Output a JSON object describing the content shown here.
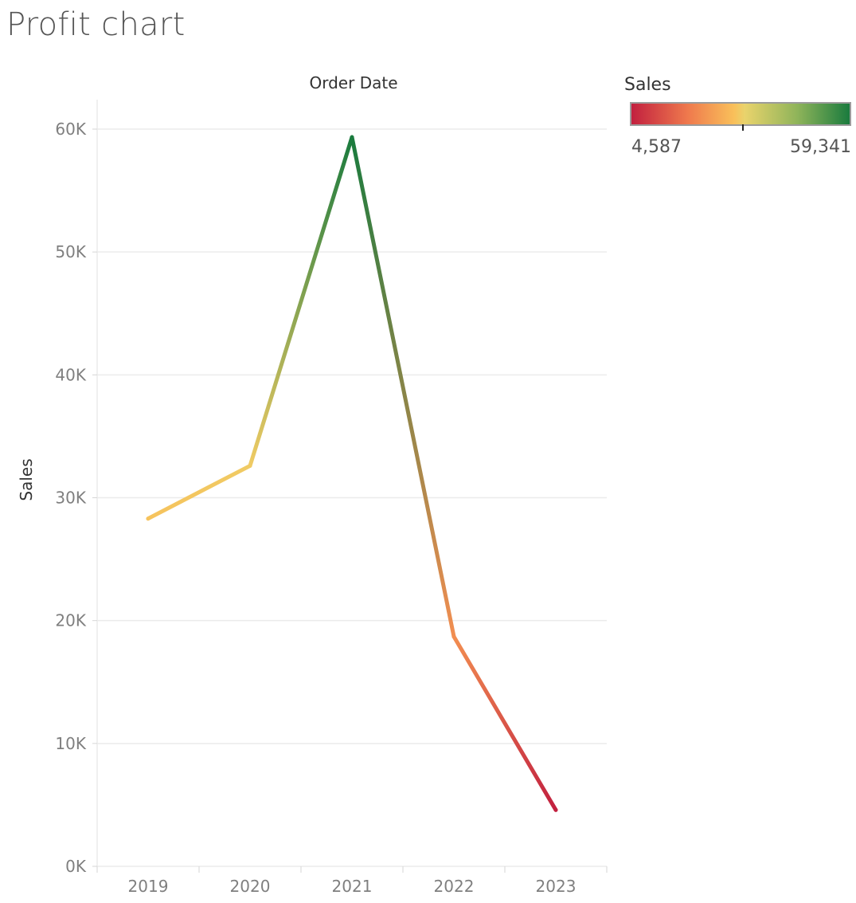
{
  "page": {
    "title": "Profit chart"
  },
  "legend": {
    "title": "Sales",
    "min_label": "4,587",
    "max_label": "59,341",
    "colors": [
      "#c2203f",
      "#ef7a4d",
      "#f9c05a",
      "#e9d36c",
      "#8fb45a",
      "#1a7b3e"
    ]
  },
  "chart_data": {
    "type": "line",
    "title": "Profit chart",
    "xlabel": "Order Date",
    "ylabel": "Sales",
    "categories": [
      "2019",
      "2020",
      "2021",
      "2022",
      "2023"
    ],
    "series": [
      {
        "values": [
          28300,
          32600,
          59341,
          18700,
          4587
        ]
      }
    ],
    "ylim": [
      0,
      60000
    ],
    "yticks": [
      0,
      10000,
      20000,
      30000,
      40000,
      50000,
      60000
    ],
    "ytick_labels": [
      "0K",
      "10K",
      "20K",
      "30K",
      "40K",
      "50K",
      "60K"
    ],
    "grid": true,
    "color_scale": {
      "min": 4587,
      "max": 59341,
      "colors": [
        "#c2203f",
        "#ef7a4d",
        "#f9c05a",
        "#e9d36c",
        "#8fb45a",
        "#1a7b3e"
      ]
    },
    "legend_position": "top-right"
  }
}
